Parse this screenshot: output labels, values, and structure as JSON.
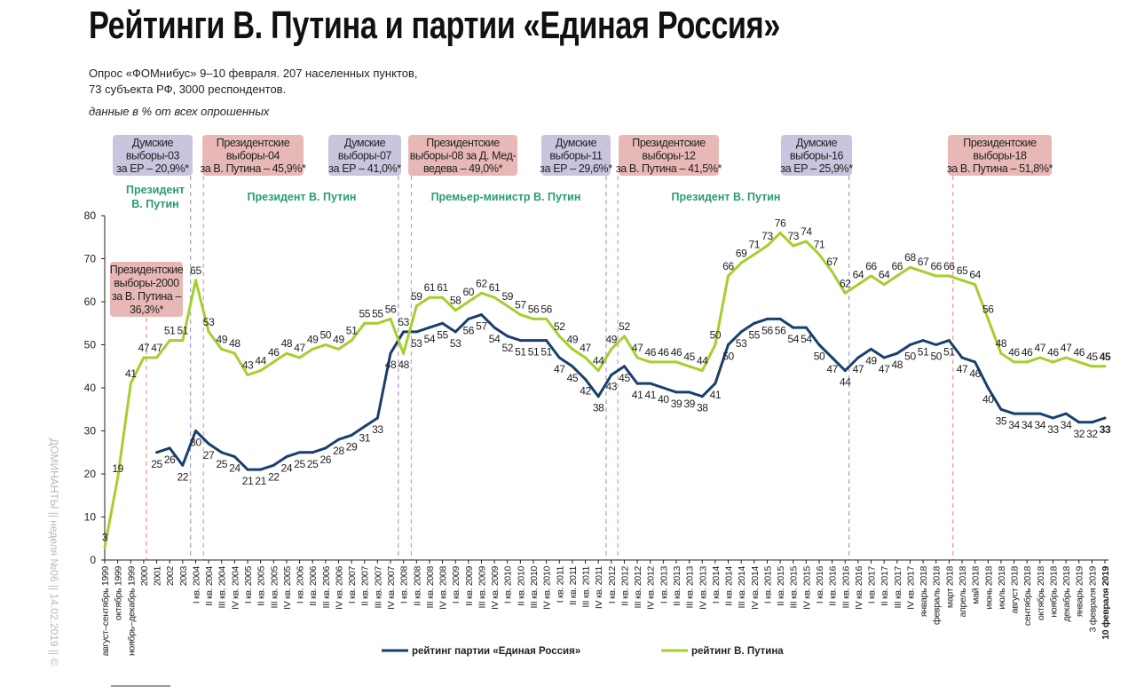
{
  "header": {
    "title": "Рейтинги В. Путина и партии «Единая Россия»",
    "subtitle_line1": "Опрос «ФОМнибус» 9–10 февраля. 207 населенных пунктов,",
    "subtitle_line2": "73 субъекта РФ, 3000 респондентов.",
    "note": "данные в % от всех опрошенных"
  },
  "watermark": "ДОМИНАНТЫ || неделя №06 || 14.02.2019 || ©",
  "colors": {
    "er": "#1b3f6d",
    "putin": "#a5cf2e",
    "duma_box": "#cbc4de",
    "pres_box": "#e8b8b6",
    "period_text": "#2a9a78",
    "duma_line": "#a99cc9",
    "pres_line": "#e39a98"
  },
  "chart_data": {
    "type": "line",
    "ylim": [
      0,
      80
    ],
    "yticks": [
      0,
      10,
      20,
      30,
      40,
      50,
      60,
      70,
      80
    ],
    "grid": false,
    "legend_position": "bottom",
    "categories": [
      "август–сентябрь 1999",
      "октябрь 1999",
      "ноябрь–декабрь 1999",
      "2000",
      "2001",
      "2002",
      "2003",
      "I кв. 2004",
      "II кв. 2004",
      "III кв. 2004",
      "IV кв. 2004",
      "I кв. 2005",
      "II кв. 2005",
      "III кв. 2005",
      "IV кв. 2005",
      "I кв. 2006",
      "II кв. 2006",
      "III кв. 2006",
      "IV кв. 2006",
      "I кв. 2007",
      "II кв. 2007",
      "III кв. 2007",
      "IV кв. 2007",
      "I кв. 2008",
      "II кв. 2008",
      "III кв. 2008",
      "IV кв. 2008",
      "I кв. 2009",
      "II кв. 2009",
      "III кв. 2009",
      "IV кв. 2009",
      "I кв. 2010",
      "II кв. 2010",
      "III кв. 2010",
      "IV кв. 2010",
      "I кв. 2011",
      "II кв. 2011",
      "III кв. 2011",
      "IV кв. 2011",
      "I кв. 2012",
      "II кв. 2012",
      "III кв. 2012",
      "IV кв. 2012",
      "I кв. 2013",
      "II кв. 2013",
      "III кв. 2013",
      "IV кв. 2013",
      "I кв. 2014",
      "II кв. 2014",
      "III кв. 2014",
      "IV кв. 2014",
      "I кв. 2015",
      "II кв. 2015",
      "III кв. 2015",
      "IV кв. 2015",
      "I кв. 2016",
      "II кв. 2016",
      "III кв. 2016",
      "IV кв. 2016",
      "I кв. 2017",
      "II кв. 2017",
      "III кв. 2017",
      "IV кв. 2017",
      "январь 2018",
      "февраль 2018",
      "март 2018",
      "апрель 2018",
      "май 2018",
      "июнь 2018",
      "июль 2018",
      "август 2018",
      "сентябрь 2018",
      "октябрь 2018",
      "ноябрь 2018",
      "декабрь 2018",
      "январь 2019",
      "3 февраля 2019",
      "10 февраля 2019"
    ],
    "series": [
      {
        "name": "рейтинг партии «Единая Россия»",
        "color": "#1b3f6d",
        "values": [
          null,
          null,
          null,
          null,
          25,
          26,
          22,
          30,
          27,
          25,
          24,
          21,
          21,
          22,
          24,
          25,
          25,
          26,
          28,
          29,
          31,
          33,
          48,
          53,
          53,
          54,
          55,
          53,
          56,
          57,
          54,
          52,
          51,
          51,
          51,
          47,
          45,
          42,
          38,
          43,
          45,
          41,
          41,
          40,
          39,
          39,
          38,
          41,
          50,
          53,
          55,
          56,
          56,
          54,
          54,
          50,
          47,
          44,
          47,
          49,
          47,
          48,
          50,
          51,
          50,
          51,
          47,
          46,
          40,
          35,
          34,
          34,
          34,
          33,
          34,
          32,
          32,
          33
        ]
      },
      {
        "name": "рейтинг В. Путина",
        "color": "#a5cf2e",
        "values": [
          3,
          19,
          41,
          47,
          47,
          51,
          51,
          65,
          53,
          49,
          48,
          43,
          44,
          46,
          48,
          47,
          49,
          50,
          49,
          51,
          55,
          55,
          56,
          48,
          59,
          61,
          61,
          58,
          60,
          62,
          61,
          59,
          57,
          56,
          56,
          52,
          49,
          47,
          44,
          49,
          52,
          47,
          46,
          46,
          46,
          45,
          44,
          50,
          66,
          69,
          71,
          73,
          76,
          73,
          74,
          71,
          67,
          62,
          64,
          66,
          64,
          66,
          68,
          67,
          66,
          66,
          65,
          64,
          56,
          48,
          46,
          46,
          47,
          46,
          47,
          46,
          45,
          45
        ]
      }
    ],
    "events": [
      {
        "type": "pres",
        "position": 3.2,
        "lines": [
          "Президентские",
          "выборы-2000",
          "за В. Путина –",
          "36,3%*"
        ]
      },
      {
        "type": "duma",
        "position": 6.6,
        "lines": [
          "Думские",
          "выборы-03",
          "за ЕР – 20,9%*"
        ]
      },
      {
        "type": "pres",
        "position": 7.6,
        "lines": [
          "Президентские",
          "выборы-04",
          "за В. Путина – 45,9%*"
        ]
      },
      {
        "type": "duma",
        "position": 22.6,
        "lines": [
          "Думские",
          "выборы-07",
          "за ЕР – 41,0%*"
        ]
      },
      {
        "type": "pres",
        "position": 23.6,
        "lines": [
          "Президентские",
          "выборы-08 за Д. Мед-",
          "ведева – 49,0%*"
        ]
      },
      {
        "type": "duma",
        "position": 38.6,
        "lines": [
          "Думские",
          "выборы-11",
          "за ЕР – 29,6%*"
        ]
      },
      {
        "type": "pres",
        "position": 39.5,
        "lines": [
          "Президентские",
          "выборы-12",
          "за В. Путина – 41,5%*"
        ]
      },
      {
        "type": "duma",
        "position": 57.3,
        "lines": [
          "Думские",
          "выборы-16",
          "за ЕР – 25,9%*"
        ]
      },
      {
        "type": "pres",
        "position": 65.3,
        "lines": [
          "Президентские",
          "выборы-18",
          "за В. Путина – 51,8%*"
        ]
      }
    ],
    "periods": [
      {
        "lines": [
          "Президент",
          "В. Путин"
        ]
      },
      {
        "lines": [
          "Президент В. Путин"
        ]
      },
      {
        "lines": [
          "Премьер-министр В. Путин"
        ]
      },
      {
        "lines": [
          "Президент В. Путин"
        ]
      }
    ]
  }
}
